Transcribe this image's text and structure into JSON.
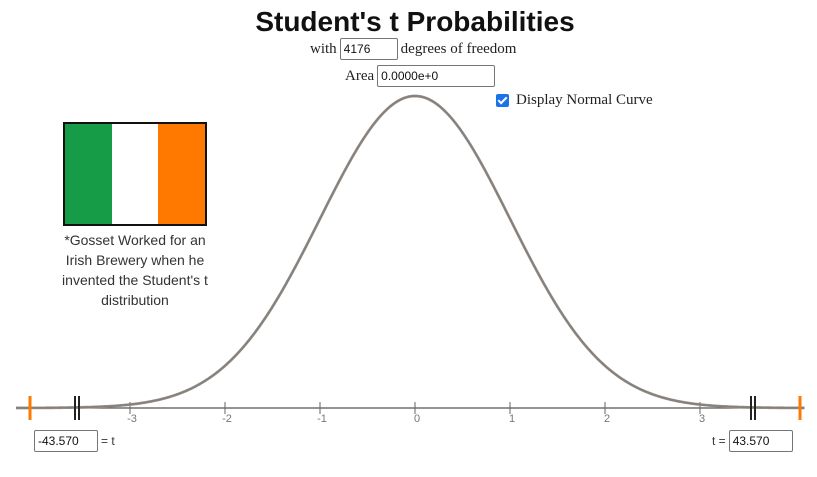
{
  "title": "Student's t Probabilities",
  "df_prefix": "with",
  "df_value": "4176",
  "df_suffix": "degrees of freedom",
  "area_label": "Area",
  "area_value": "0.0000e+0",
  "normal_curve": {
    "label": "Display Normal Curve",
    "checked": true
  },
  "flag": {
    "colors": [
      "#169b47",
      "#ffffff",
      "#ff7900"
    ]
  },
  "caption": "*Gosset Worked for an Irish Brewery when he invented the Student's t distribution",
  "left_t": {
    "value": "-43.570",
    "suffix": "= t"
  },
  "right_t": {
    "prefix": "t =",
    "value": "43.570"
  },
  "chart_data": {
    "type": "line",
    "title": "",
    "x_ticks": [
      "-3",
      "-2",
      "-1",
      "0",
      "1",
      "2",
      "3"
    ],
    "xlim": [
      -4.2,
      4.1
    ],
    "series": [
      {
        "name": "",
        "distribution": "student-t",
        "df": 4176,
        "color": "#888078"
      }
    ],
    "marker_t": [
      -43.57,
      43.57
    ],
    "marker_color": "#ff7900"
  }
}
